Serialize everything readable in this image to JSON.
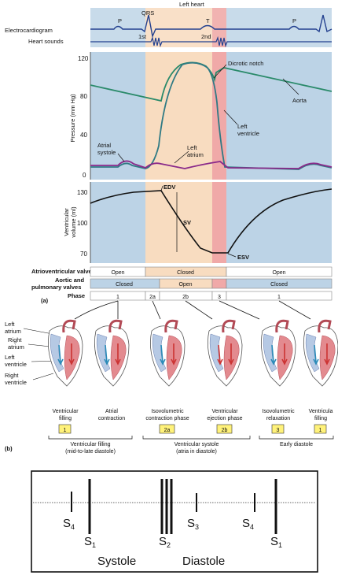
{
  "header": {
    "title": "Left heart"
  },
  "ecg": {
    "row_label": "Electrocardiogram",
    "waves": {
      "p1": "P",
      "qrs": "QRS",
      "t": "T",
      "p2": "P"
    }
  },
  "heart_sounds": {
    "row_label": "Heart sounds",
    "first": "1st",
    "second": "2nd"
  },
  "pressure_chart": {
    "ylabel": "Pressure (mm Hg)",
    "yticks": [
      "120",
      "80",
      "40",
      "0"
    ],
    "labels": {
      "dicrotic_notch": "Dicrotic notch",
      "aorta": "Aorta",
      "left_ventricle_1": "Left",
      "left_ventricle_2": "ventricle",
      "atrial_systole_1": "Atrial",
      "atrial_systole_2": "systole",
      "left_atrium_1": "Left",
      "left_atrium_2": "atrium"
    }
  },
  "volume_chart": {
    "ylabel_1": "Ventricular",
    "ylabel_2": "volume (ml)",
    "yticks": [
      "130",
      "100",
      "70"
    ],
    "labels": {
      "edv": "EDV",
      "sv": "SV",
      "esv": "ESV"
    }
  },
  "valve_table": {
    "rows": [
      {
        "label": "Atrioventricular valves",
        "cells": [
          "Open",
          "Closed",
          "Open"
        ]
      },
      {
        "label_1": "Aortic and",
        "label_2": "pulmonary valves",
        "cells": [
          "Closed",
          "Open",
          "Closed"
        ]
      },
      {
        "label": "Phase",
        "cells": [
          "1",
          "2a",
          "2b",
          "3",
          "1"
        ]
      }
    ],
    "panel_a": "(a)"
  },
  "heart_panels": {
    "panel_b": "(b)",
    "heart_labels": [
      "Left atrium",
      "Right atrium",
      "Left ventricle",
      "Right ventricle"
    ],
    "heart_labels_lines": {
      "la_1": "Left",
      "la_2": "atrium",
      "ra_1": "Right",
      "ra_2": "atrium",
      "lv_1": "Left",
      "lv_2": "ventricle",
      "rv_1": "Right",
      "rv_2": "ventricle"
    },
    "stages": [
      {
        "line_1": "Ventricular",
        "line_2": "filling",
        "badge": "1"
      },
      {
        "line_1": "Atrial",
        "line_2": "contraction",
        "badge": ""
      },
      {
        "line_1": "Isovolumetric",
        "line_2": "contraction phase",
        "badge": "2a"
      },
      {
        "line_1": "Ventricular",
        "line_2": "ejection phase",
        "badge": "2b"
      },
      {
        "line_1": "Isovolumetric",
        "line_2": "relaxation",
        "badge": "3"
      },
      {
        "line_1": "Ventricula",
        "line_2": "filling",
        "badge": "1"
      }
    ],
    "groups": [
      {
        "line_1": "Ventricular filling",
        "line_2": "(mid-to-late diastole)"
      },
      {
        "line_1": "Ventricular systole",
        "line_2": "(atria in diastole)"
      },
      {
        "line_1": "Early diastole",
        "line_2": ""
      }
    ]
  },
  "sound_diagram": {
    "sounds": {
      "s4a": "S",
      "s4a_sub": "4",
      "s1a": "S",
      "s1a_sub": "1",
      "s2": "S",
      "s2_sub": "2",
      "s3": "S",
      "s3_sub": "3",
      "s4b": "S",
      "s4b_sub": "4",
      "s1b": "S",
      "s1b_sub": "1"
    },
    "systole": "Systole",
    "diastole": "Diastole"
  },
  "colors": {
    "bg_blue": "#bcd3e6",
    "bg_peach": "#f8dcc0",
    "bg_pink": "#f0a9a8",
    "aorta": "#2a8a6a",
    "ventricle": "#2f7a84",
    "atrium": "#8a2a8a",
    "ecg": "#23408f",
    "badge": "#fff27a"
  }
}
